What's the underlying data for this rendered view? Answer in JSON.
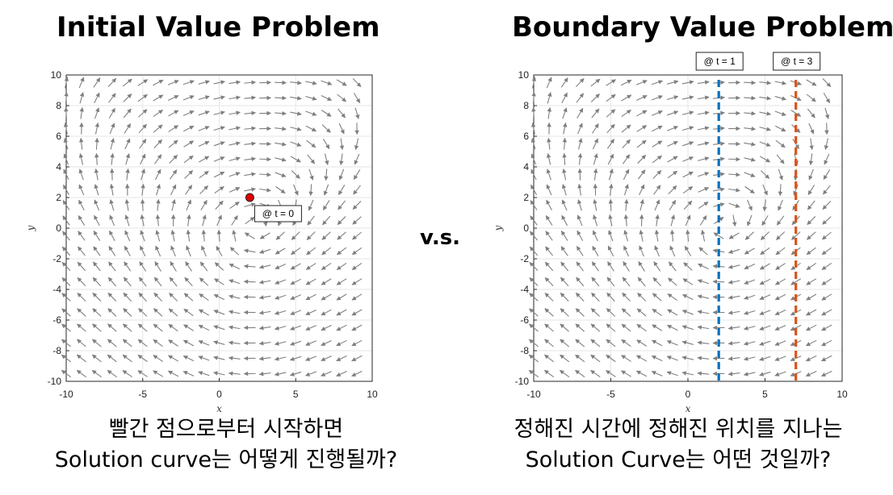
{
  "left": {
    "title": "Initial Value Problem",
    "caption_line1": "빨간 점으로부터 시작하면",
    "caption_line2": "Solution curve는 어떻게 진행될까?",
    "initial_point": {
      "x": 2,
      "y": 2,
      "label": "@ t = 0",
      "color": "#e00000"
    }
  },
  "vs_label": "v.s.",
  "right": {
    "title": "Boundary Value Problem",
    "caption_line1": "정해진 시간에 정해진 위치를 지나는",
    "caption_line2": "Solution Curve는 어떤 것일까?",
    "boundaries": [
      {
        "x": 2,
        "label": "@ t = 1",
        "color": "#0072bd"
      },
      {
        "x": 7,
        "label": "@ t = 3",
        "color": "#d95319"
      }
    ]
  },
  "chart_data": [
    {
      "type": "quiver",
      "xlabel": "x",
      "ylabel": "y",
      "xlim": [
        -10,
        10
      ],
      "ylim": [
        -10,
        10
      ],
      "xticks": [
        -10,
        -5,
        0,
        5,
        10
      ],
      "yticks": [
        -10,
        -8,
        -6,
        -4,
        -2,
        0,
        2,
        4,
        6,
        8,
        10
      ],
      "grid": true,
      "arrow_color": "#7f7f7f"
    },
    {
      "type": "quiver",
      "xlabel": "x",
      "ylabel": "y",
      "xlim": [
        -10,
        10
      ],
      "ylim": [
        -10,
        10
      ],
      "xticks": [
        -10,
        -5,
        0,
        5,
        10
      ],
      "yticks": [
        -10,
        -8,
        -6,
        -4,
        -2,
        0,
        2,
        4,
        6,
        8,
        10
      ],
      "grid": true,
      "arrow_color": "#7f7f7f"
    }
  ]
}
